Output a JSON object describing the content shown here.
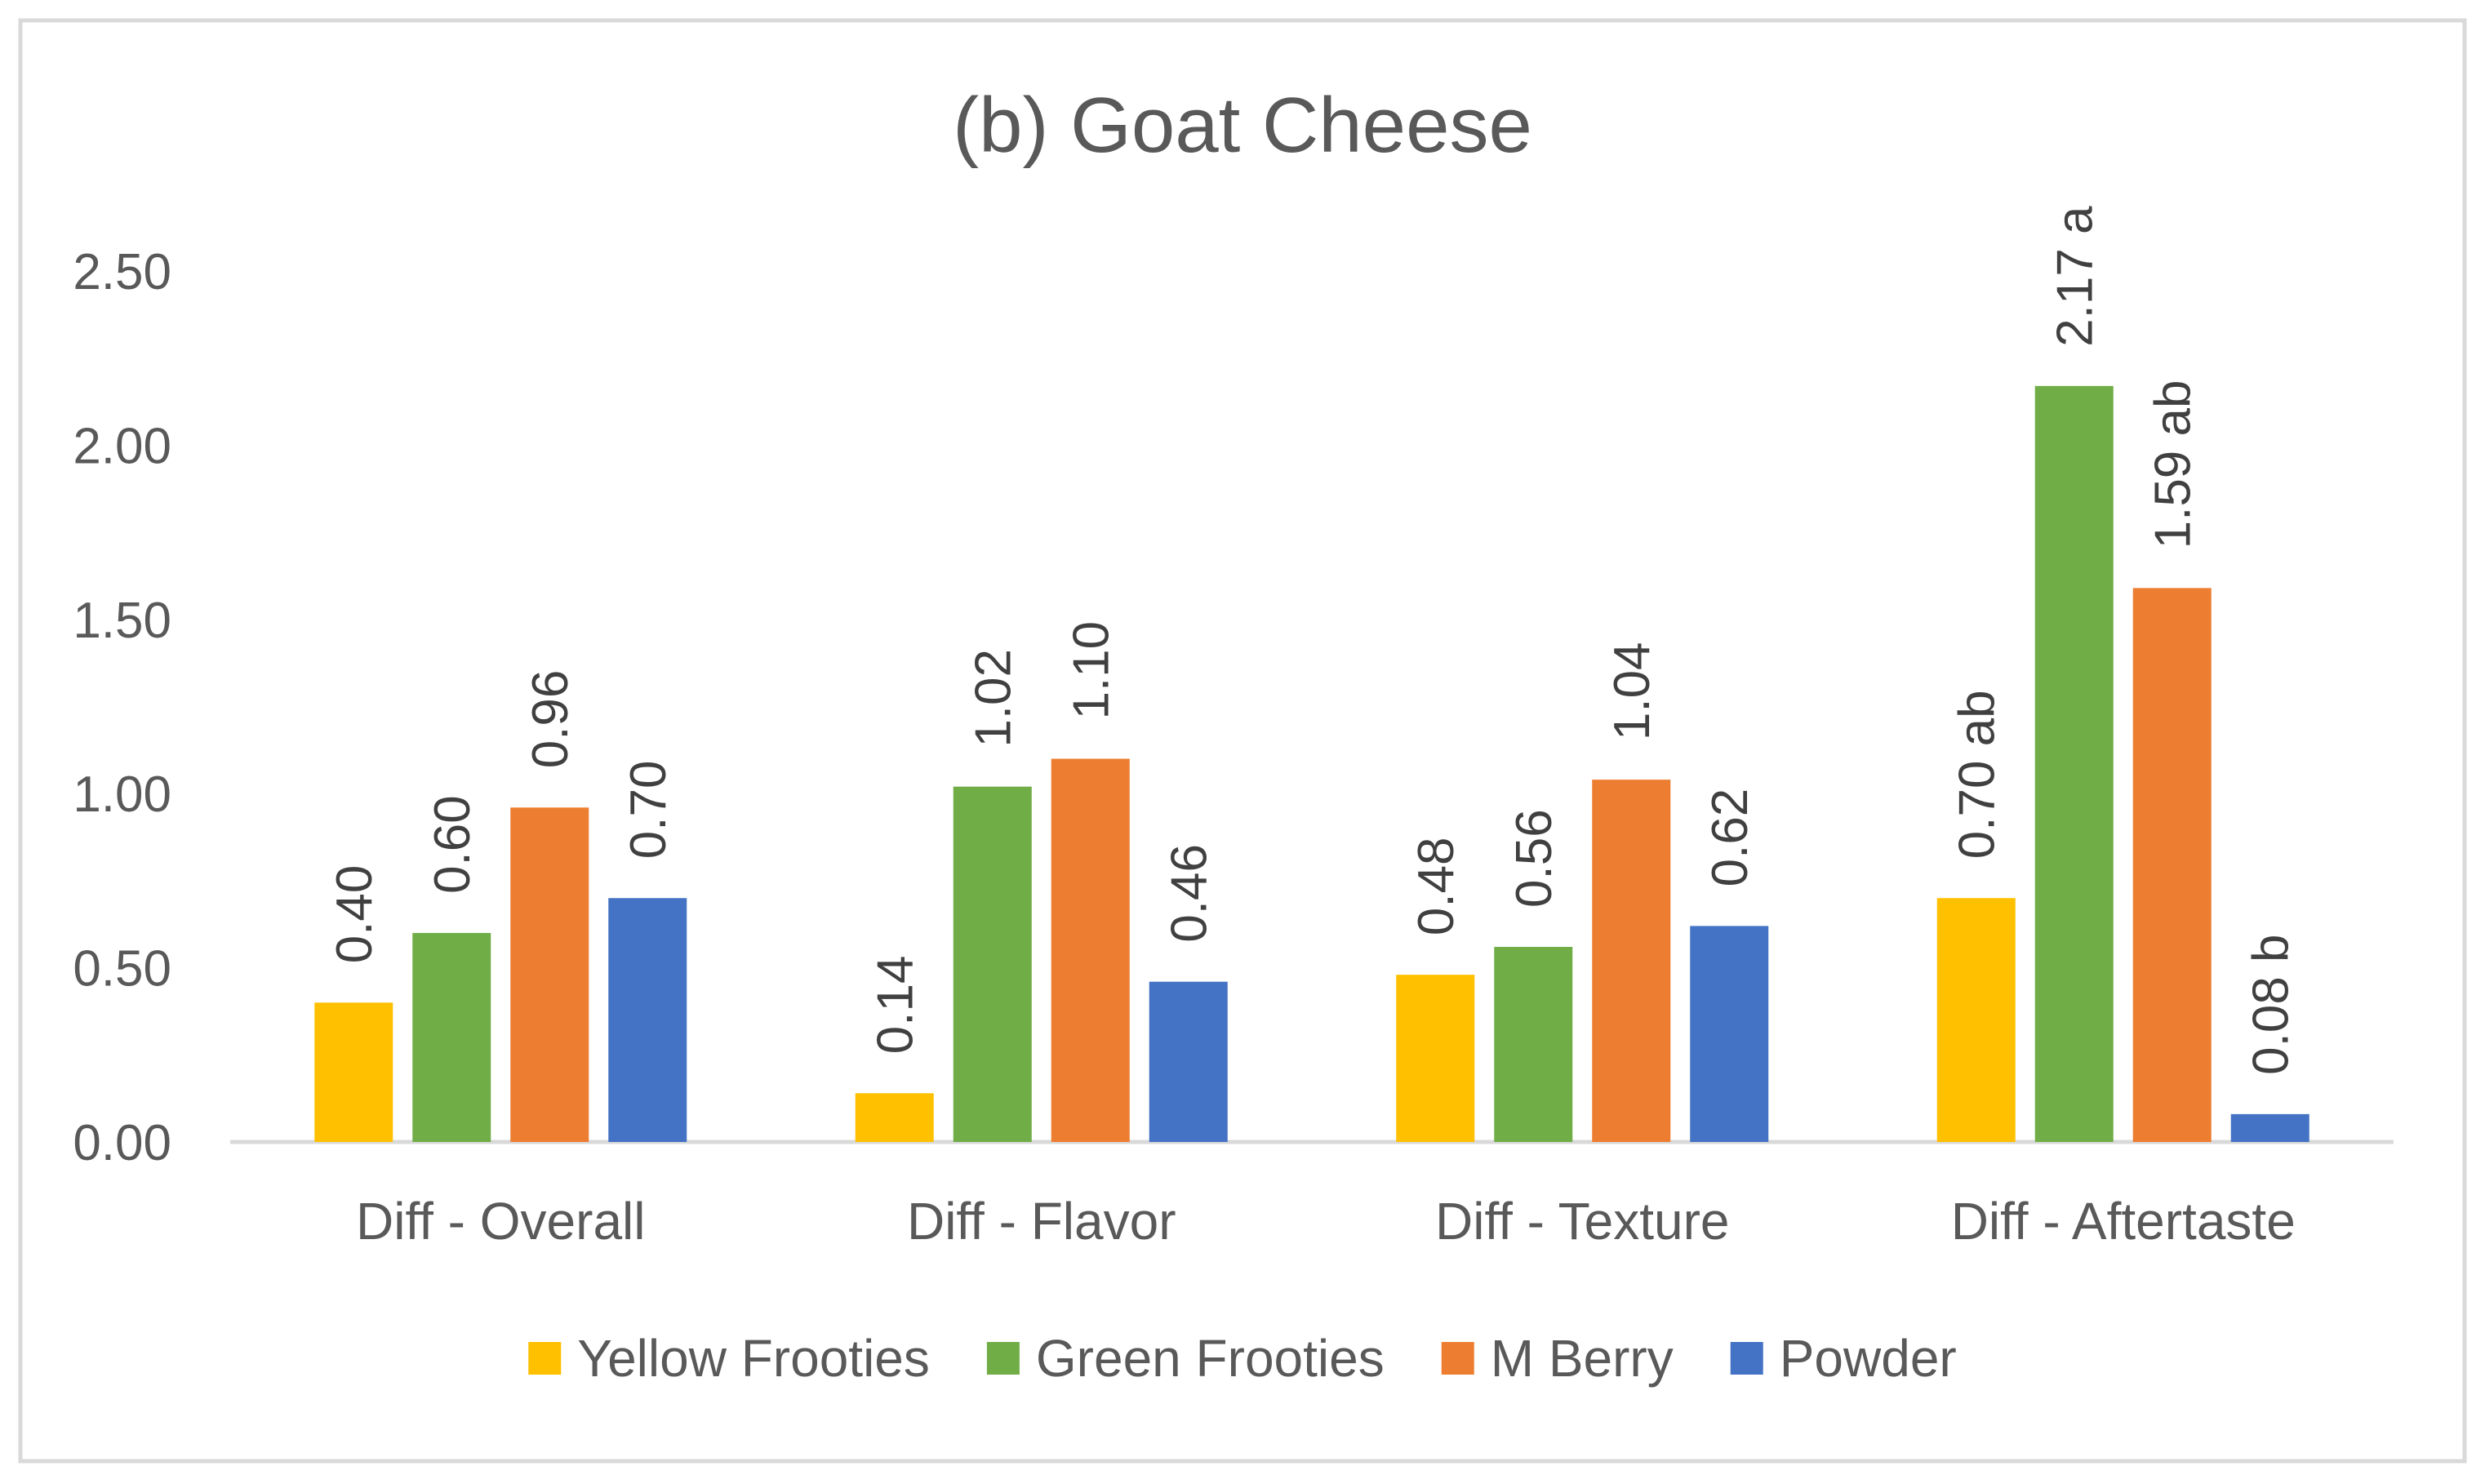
{
  "chart_data": {
    "type": "bar",
    "title": "(b) Goat Cheese",
    "categories": [
      "Diff - Overall",
      "Diff - Flavor",
      "Diff - Texture",
      "Diff - Aftertaste"
    ],
    "series": [
      {
        "name": "Yellow Frooties",
        "color": "#FFC000",
        "values": [
          0.4,
          0.14,
          0.48,
          0.7
        ],
        "labels": [
          "0.40",
          "0.14",
          "0.48",
          "0.70 ab"
        ]
      },
      {
        "name": "Green Frooties",
        "color": "#70AD47",
        "values": [
          0.6,
          1.02,
          0.56,
          2.17
        ],
        "labels": [
          "0.60",
          "1.02",
          "0.56",
          "2.17 a"
        ]
      },
      {
        "name": "M Berry",
        "color": "#ED7D31",
        "values": [
          0.96,
          1.1,
          1.04,
          1.59
        ],
        "labels": [
          "0.96",
          "1.10",
          "1.04",
          "1.59 ab"
        ]
      },
      {
        "name": "Powder",
        "color": "#4472C4",
        "values": [
          0.7,
          0.46,
          0.62,
          0.08
        ],
        "labels": [
          "0.70",
          "0.46",
          "0.62",
          "0.08 b"
        ]
      }
    ],
    "yticks": [
      "0.00",
      "0.50",
      "1.00",
      "1.50",
      "2.00",
      "2.50"
    ],
    "ylim": [
      0,
      2.5
    ],
    "grid": false,
    "legend": "bottom"
  }
}
